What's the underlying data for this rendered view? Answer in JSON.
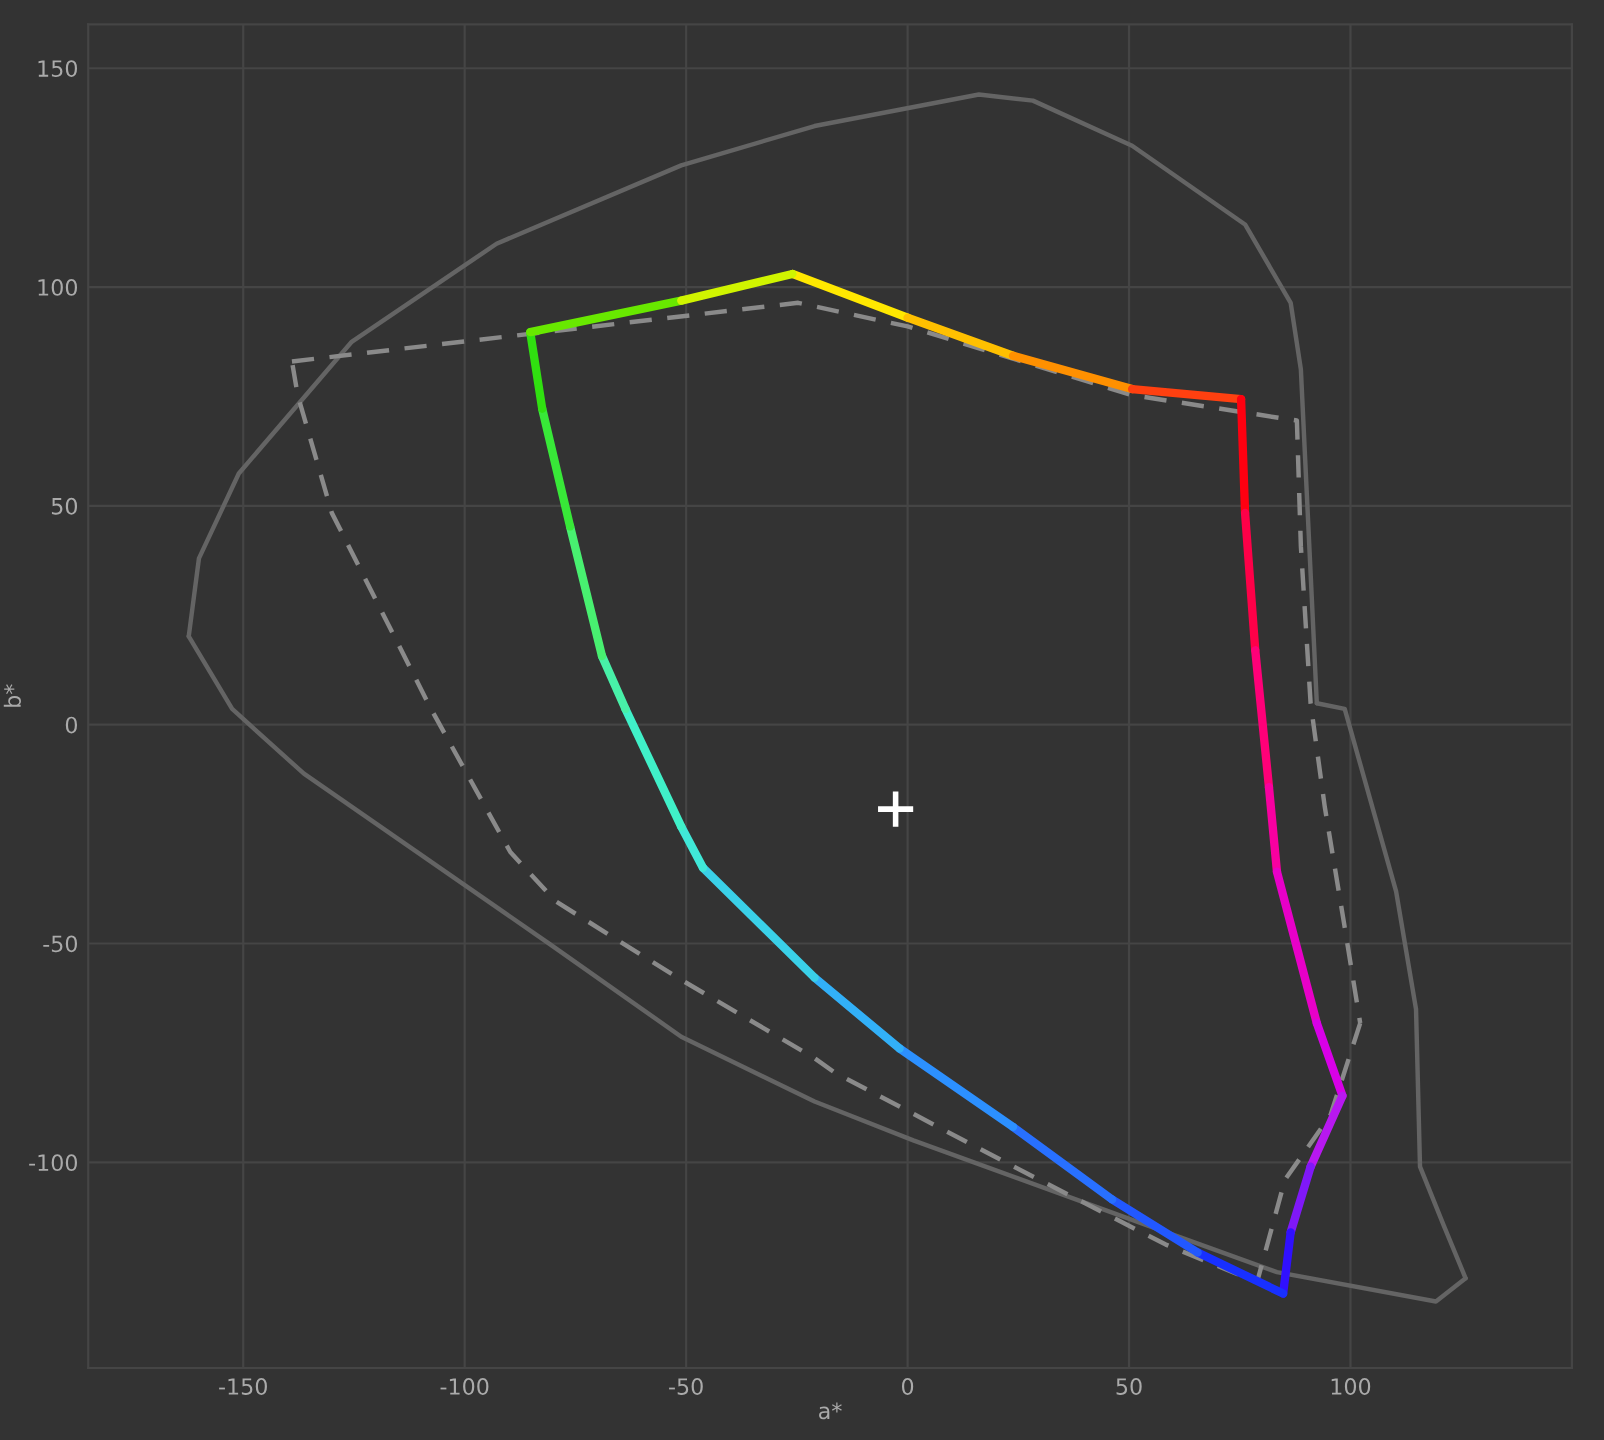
{
  "chart_data": {
    "type": "line",
    "xlabel": "a*",
    "ylabel": "b*",
    "xlim": [
      -185,
      150
    ],
    "ylim": [
      -147,
      160
    ],
    "xticks": [
      -150,
      -100,
      -50,
      0,
      50,
      100
    ],
    "yticks": [
      -100,
      -50,
      0,
      50,
      100,
      150
    ],
    "grid": true,
    "series": [
      {
        "line_style": "solid",
        "color": "#646464",
        "x": [
          -162.3,
          -160,
          -151,
          -125.6,
          -92.8,
          -51.1,
          -21,
          16.1,
          28.3,
          50.7,
          76.2,
          86.5,
          88.8,
          92.4
        ],
        "values": [
          20.2,
          38,
          57.4,
          87.4,
          109.9,
          127.8,
          136.8,
          144,
          142.6,
          132.3,
          114.3,
          96.4,
          81.2,
          4.9
        ]
      },
      {
        "line_style": "solid",
        "color": "#646464",
        "x": [
          92.4,
          98.7,
          110.3,
          114.8,
          115.7,
          121,
          126
        ],
        "values": [
          4.9,
          3.6,
          -38.1,
          -65,
          -101,
          -114.3,
          -126.5
        ]
      },
      {
        "line_style": "solid",
        "color": "#646464",
        "x": [
          126,
          119.3,
          83.4,
          53.8,
          1.3,
          -21,
          -51.1,
          -80.7,
          -136.3,
          -152.5,
          -162.3
        ],
        "values": [
          -126.5,
          -131.8,
          -125.1,
          -114.3,
          -95,
          -86.1,
          -71.3,
          -50.2,
          -11.2,
          3.6,
          20.2
        ]
      },
      {
        "line_style": "dashed",
        "color": "#8a8a8a",
        "x": [
          -139,
          -24.7,
          0,
          50.7,
          87.9,
          88.8,
          91,
          94.2,
          98.6,
          102.2
        ],
        "values": [
          83,
          96.4,
          91,
          75.3,
          69.5,
          40.8,
          4.9,
          -18.8,
          -45.7,
          -68.2
        ]
      },
      {
        "line_style": "dashed",
        "color": "#8a8a8a",
        "x": [
          102.2,
          95.5,
          85.2,
          78.9,
          58.3,
          23.8,
          -16.6,
          -21,
          -51.1,
          -79.4,
          -89.7,
          -107.6,
          -130,
          -137.7,
          -139
        ],
        "values": [
          -68.2,
          -89.2,
          -104,
          -127.4,
          -118.8,
          -100.9,
          -79.4,
          -76.2,
          -58.3,
          -40.4,
          -29.1,
          3.6,
          48.4,
          75.3,
          83
        ]
      },
      {
        "color": "#ffe800",
        "x": [
          -26,
          0
        ],
        "values": [
          103,
          93
        ]
      },
      {
        "color": "#ffc000",
        "x": [
          0,
          23.8
        ],
        "values": [
          93,
          84.3
        ]
      },
      {
        "color": "#ff9000",
        "x": [
          23.8,
          50.7
        ],
        "values": [
          84.3,
          76.7
        ]
      },
      {
        "color": "#ff4010",
        "x": [
          50.7,
          75.3
        ],
        "values": [
          76.7,
          74.4
        ]
      },
      {
        "color": "#ff0010",
        "x": [
          75.3,
          76.2
        ],
        "values": [
          74.4,
          48.4
        ]
      },
      {
        "color": "#ff0048",
        "x": [
          76.2,
          78.5
        ],
        "values": [
          48.4,
          17
        ]
      },
      {
        "color": "#ff0078",
        "x": [
          78.5,
          81.6
        ],
        "values": [
          17,
          -14.3
        ]
      },
      {
        "color": "#f800a0",
        "x": [
          81.6,
          83.4
        ],
        "values": [
          -14.3,
          -33.6
        ]
      },
      {
        "color": "#e800c8",
        "x": [
          83.4,
          92.4
        ],
        "values": [
          -33.6,
          -68.2
        ]
      },
      {
        "color": "#d800e8",
        "x": [
          92.4,
          98.2
        ],
        "values": [
          -68.2,
          -84.8
        ]
      },
      {
        "color": "#b818f0",
        "x": [
          98.2,
          91
        ],
        "values": [
          -84.8,
          -101
        ]
      },
      {
        "color": "#8018f8",
        "x": [
          91,
          86.5
        ],
        "values": [
          -101,
          -116
        ]
      },
      {
        "color": "#3010ff",
        "x": [
          86.5,
          84.8
        ],
        "values": [
          -116,
          -130
        ]
      },
      {
        "color": "#1830ff",
        "x": [
          84.8,
          65.5
        ],
        "values": [
          -130,
          -120.6
        ]
      },
      {
        "color": "#2258ff",
        "x": [
          65.5,
          46.2
        ],
        "values": [
          -120.6,
          -108.5
        ]
      },
      {
        "color": "#2870ff",
        "x": [
          46.2,
          23.8
        ],
        "values": [
          -108.5,
          -91.9
        ]
      },
      {
        "color": "#2c90ff",
        "x": [
          23.8,
          -1.8
        ],
        "values": [
          -91.9,
          -74
        ]
      },
      {
        "color": "#32b0f8",
        "x": [
          -1.8,
          -21
        ],
        "values": [
          -74,
          -57.8
        ]
      },
      {
        "color": "#3ad0e8",
        "x": [
          -21,
          -46.2
        ],
        "values": [
          -57.8,
          -32.7
        ]
      },
      {
        "color": "#40e8d8",
        "x": [
          -46.2,
          -51.1
        ],
        "values": [
          -32.7,
          -23.3
        ]
      },
      {
        "color": "#40f0c8",
        "x": [
          -51.1,
          -63.7
        ],
        "values": [
          -23.3,
          3.6
        ]
      },
      {
        "color": "#48f0a8",
        "x": [
          -63.7,
          -69
        ],
        "values": [
          3.6,
          15.7
        ]
      },
      {
        "color": "#48f070",
        "x": [
          -69,
          -76.2
        ],
        "values": [
          15.7,
          45.3
        ]
      },
      {
        "color": "#38e838",
        "x": [
          -76.2,
          -82.5
        ],
        "values": [
          45.3,
          72.2
        ]
      },
      {
        "color": "#30e010",
        "x": [
          -82.5,
          -85.2
        ],
        "values": [
          72.2,
          89.7
        ]
      },
      {
        "color": "#68e800",
        "x": [
          -85.2,
          -51.1
        ],
        "values": [
          89.7,
          96.9
        ]
      },
      {
        "color": "#d0f400",
        "x": [
          -51.1,
          -26
        ],
        "values": [
          96.9,
          103
        ]
      },
      {
        "type": "scatter",
        "marker": "cross",
        "color": "#ffffff",
        "x": [
          -2.7
        ],
        "values": [
          -19.3
        ]
      }
    ]
  }
}
